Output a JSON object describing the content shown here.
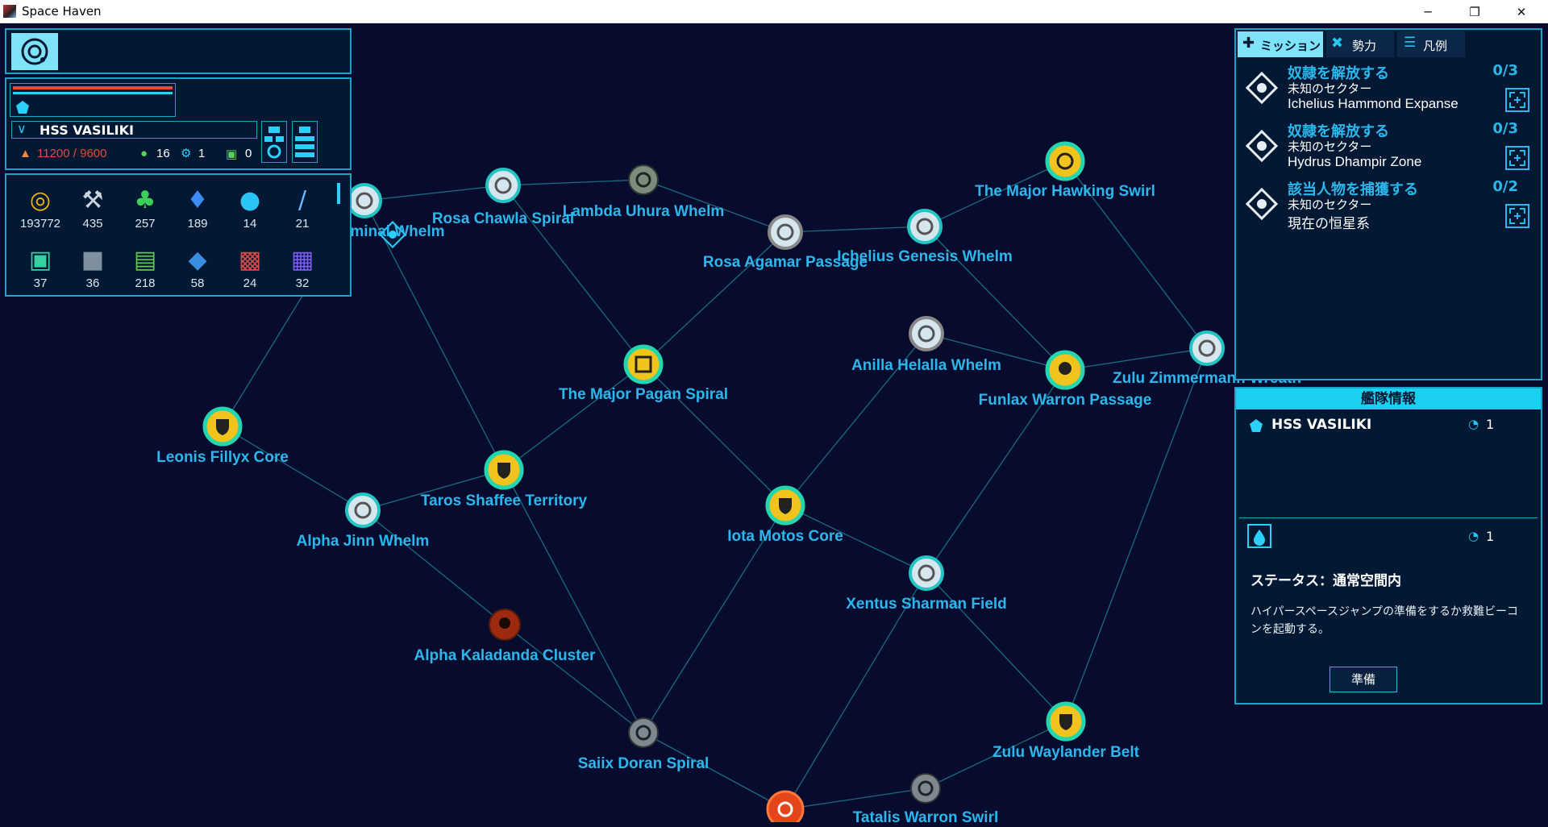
{
  "window": {
    "title": "Space Haven",
    "min": "─",
    "restore": "❐",
    "close": "✕"
  },
  "ship": {
    "name": "HSS VASILIKI",
    "cargo": "11200 / 9600",
    "crew": "16",
    "gear": "1",
    "chips": "0"
  },
  "resources": [
    {
      "icon": "credit-coin-icon",
      "value": "193772"
    },
    {
      "icon": "tools-icon",
      "value": "435"
    },
    {
      "icon": "green-crystal-icon",
      "value": "257"
    },
    {
      "icon": "blue-crystal-icon",
      "value": "189"
    },
    {
      "icon": "water-drop-icon",
      "value": "14"
    },
    {
      "icon": "energy-rod-icon",
      "value": "21"
    },
    {
      "icon": "machine-icon",
      "value": "37"
    },
    {
      "icon": "metal-block-icon",
      "value": "36"
    },
    {
      "icon": "fabric-stack-icon",
      "value": "218"
    },
    {
      "icon": "blue-cube-icon",
      "value": "58"
    },
    {
      "icon": "red-block-icon",
      "value": "24"
    },
    {
      "icon": "purple-block-icon",
      "value": "32"
    }
  ],
  "tabs": [
    {
      "label": "ミッション"
    },
    {
      "label": "勢力"
    },
    {
      "label": "凡例"
    }
  ],
  "missions": [
    {
      "title": "奴隷を解放する",
      "sector": "未知のセクター",
      "location": "Ichelius Hammond Expanse",
      "count": "0/3"
    },
    {
      "title": "奴隷を解放する",
      "sector": "未知のセクター",
      "location": "Hydrus Dhampir Zone",
      "count": "0/3"
    },
    {
      "title": "該当人物を捕獲する",
      "sector": "未知のセクター",
      "location": "現在の恒星系",
      "count": "0/2"
    }
  ],
  "fleet": {
    "header": "艦隊情報",
    "ship_name": "HSS VASILIKI",
    "ship_count": "1",
    "unit_count": "1",
    "status_label": "ステータス：",
    "status_value": "通常空間内",
    "description": "ハイパースペースジャンプの準備をするか救難ビーコンを起動する。",
    "prepare_button": "準備"
  },
  "map_nodes": [
    {
      "name": "...minal Whelm",
      "type": "station"
    },
    {
      "name": "Rosa Chawla Spiral",
      "type": "station"
    },
    {
      "name": "Lambda Uhura Whelm",
      "type": "unexplored"
    },
    {
      "name": "Rosa Agamar Passage",
      "type": "station"
    },
    {
      "name": "Ichelius Genesis Whelm",
      "type": "station"
    },
    {
      "name": "The Major Hawking Swirl",
      "type": "yellow"
    },
    {
      "name": "The Major Pagan Spiral",
      "type": "yellow"
    },
    {
      "name": "Anilla Helalla Whelm",
      "type": "station"
    },
    {
      "name": "Funlax Warron Passage",
      "type": "pirate"
    },
    {
      "name": "Zulu Zimmermann Wreath",
      "type": "station"
    },
    {
      "name": "Leonis Fillyx Core",
      "type": "shield"
    },
    {
      "name": "Taros Shaffee Territory",
      "type": "shield"
    },
    {
      "name": "Alpha Jinn Whelm",
      "type": "station"
    },
    {
      "name": "Iota Motos Core",
      "type": "shield"
    },
    {
      "name": "Xentus Sharman Field",
      "type": "station"
    },
    {
      "name": "Alpha Kaladanda Cluster",
      "type": "hostile"
    },
    {
      "name": "Saiix Doran Spiral",
      "type": "unexplored"
    },
    {
      "name": "Zulu Waylander Belt",
      "type": "shield"
    },
    {
      "name": "Tatalis Warron Swirl",
      "type": "unexplored"
    },
    {
      "name": "",
      "type": "hostile-orange"
    }
  ]
}
